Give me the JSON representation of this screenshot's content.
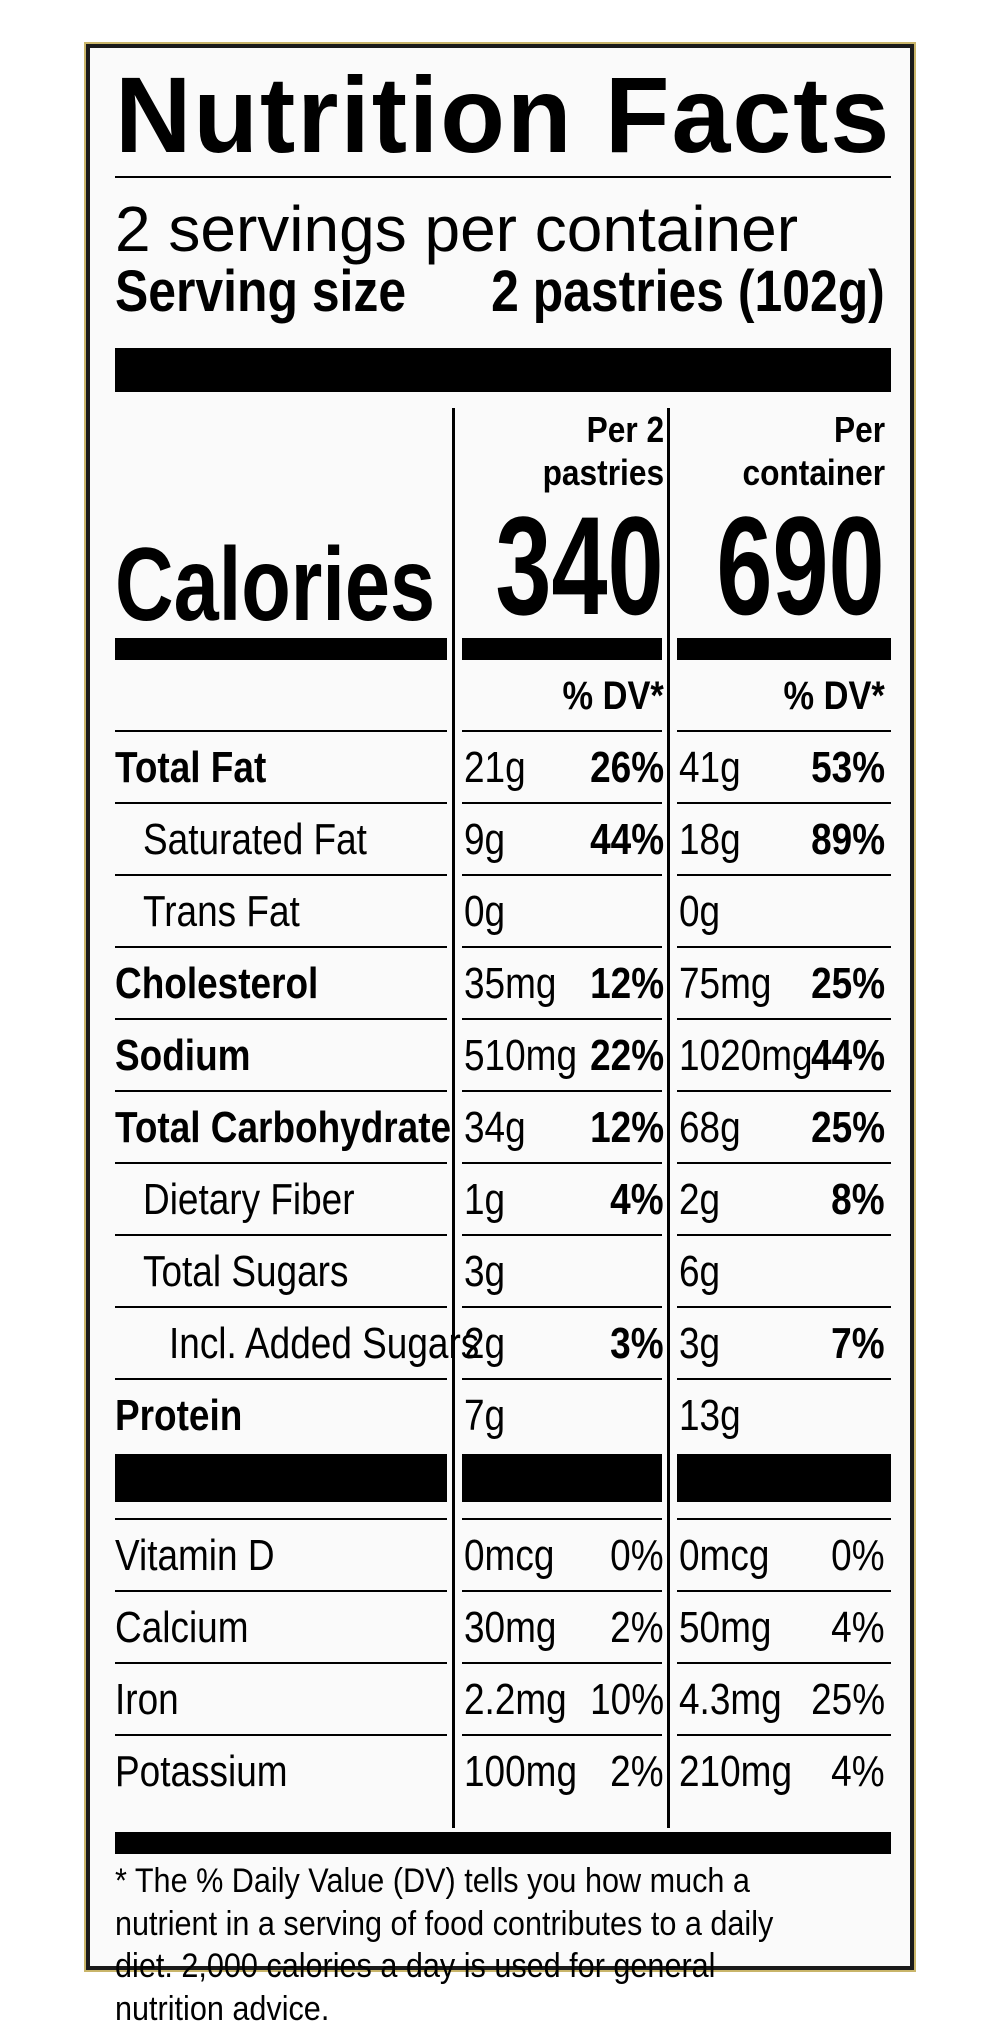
{
  "title": "Nutrition Facts",
  "servings_per_container": "2 servings per container",
  "serving_size": {
    "label": "Serving size",
    "value": "2 pastries (102g)"
  },
  "columns": [
    {
      "heading_line1": "Per 2",
      "heading_line2": "pastries",
      "calories": "340"
    },
    {
      "heading_line1": "Per",
      "heading_line2": "container",
      "calories": "690"
    }
  ],
  "calories_label": "Calories",
  "dv_header": "% DV*",
  "nutrients": [
    {
      "name": "Total Fat",
      "bold": true,
      "indent": 0,
      "c1_amount": "21g",
      "c1_dv": "26%",
      "c2_amount": "41g",
      "c2_dv": "53%"
    },
    {
      "name": "Saturated Fat",
      "bold": false,
      "indent": 1,
      "c1_amount": "9g",
      "c1_dv": "44%",
      "c2_amount": "18g",
      "c2_dv": "89%"
    },
    {
      "name": "Trans Fat",
      "bold": false,
      "indent": 1,
      "c1_amount": "0g",
      "c1_dv": "",
      "c2_amount": "0g",
      "c2_dv": ""
    },
    {
      "name": "Cholesterol",
      "bold": true,
      "indent": 0,
      "c1_amount": "35mg",
      "c1_dv": "12%",
      "c2_amount": "75mg",
      "c2_dv": "25%"
    },
    {
      "name": "Sodium",
      "bold": true,
      "indent": 0,
      "c1_amount": "510mg",
      "c1_dv": "22%",
      "c2_amount": "1020mg",
      "c2_dv": "44%"
    },
    {
      "name": "Total Carbohydrate",
      "bold": true,
      "indent": 0,
      "c1_amount": "34g",
      "c1_dv": "12%",
      "c2_amount": "68g",
      "c2_dv": "25%"
    },
    {
      "name": "Dietary Fiber",
      "bold": false,
      "indent": 1,
      "c1_amount": "1g",
      "c1_dv": "4%",
      "c2_amount": "2g",
      "c2_dv": "8%"
    },
    {
      "name": "Total Sugars",
      "bold": false,
      "indent": 1,
      "c1_amount": "3g",
      "c1_dv": "",
      "c2_amount": "6g",
      "c2_dv": ""
    },
    {
      "name": "Incl. Added Sugars",
      "bold": false,
      "indent": 2,
      "c1_amount": "2g",
      "c1_dv": "3%",
      "c2_amount": "3g",
      "c2_dv": "7%"
    },
    {
      "name": "Protein",
      "bold": true,
      "indent": 0,
      "c1_amount": "7g",
      "c1_dv": "",
      "c2_amount": "13g",
      "c2_dv": ""
    }
  ],
  "vitamins": [
    {
      "name": "Vitamin D",
      "c1_amount": "0mcg",
      "c1_dv": "0%",
      "c2_amount": "0mcg",
      "c2_dv": "0%"
    },
    {
      "name": "Calcium",
      "c1_amount": "30mg",
      "c1_dv": "2%",
      "c2_amount": "50mg",
      "c2_dv": "4%"
    },
    {
      "name": "Iron",
      "c1_amount": "2.2mg",
      "c1_dv": "10%",
      "c2_amount": "4.3mg",
      "c2_dv": "25%"
    },
    {
      "name": "Potassium",
      "c1_amount": "100mg",
      "c1_dv": "2%",
      "c2_amount": "210mg",
      "c2_dv": "4%"
    }
  ],
  "footnote": "* The % Daily Value (DV) tells you how much a nutrient in a serving of food contributes to a daily diet. 2,000 calories a day is used for general nutrition advice."
}
